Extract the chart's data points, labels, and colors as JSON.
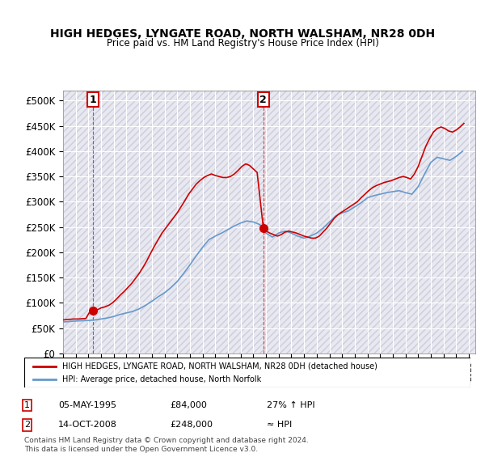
{
  "title": "HIGH HEDGES, LYNGATE ROAD, NORTH WALSHAM, NR28 0DH",
  "subtitle": "Price paid vs. HM Land Registry's House Price Index (HPI)",
  "legend_line1": "HIGH HEDGES, LYNGATE ROAD, NORTH WALSHAM, NR28 0DH (detached house)",
  "legend_line2": "HPI: Average price, detached house, North Norfolk",
  "sale1_label": "1",
  "sale1_date": "05-MAY-1995",
  "sale1_price": "£84,000",
  "sale1_hpi": "27% ↑ HPI",
  "sale1_year": 1995.35,
  "sale1_value": 84000,
  "sale2_label": "2",
  "sale2_date": "14-OCT-2008",
  "sale2_price": "£248,000",
  "sale2_hpi": "≈ HPI",
  "sale2_year": 2008.79,
  "sale2_value": 248000,
  "footer": "Contains HM Land Registry data © Crown copyright and database right 2024.\nThis data is licensed under the Open Government Licence v3.0.",
  "hpi_color": "#6699cc",
  "price_color": "#cc0000",
  "bg_hatch_color": "#e8e8f0",
  "ylim": [
    0,
    520000
  ],
  "yticks": [
    0,
    50000,
    100000,
    150000,
    200000,
    250000,
    300000,
    350000,
    400000,
    450000,
    500000
  ],
  "xmin": 1993,
  "xmax": 2025.5,
  "hpi_data": {
    "years": [
      1993.0,
      1993.5,
      1994.0,
      1994.5,
      1995.0,
      1995.5,
      1996.0,
      1996.5,
      1997.0,
      1997.5,
      1998.0,
      1998.5,
      1999.0,
      1999.5,
      2000.0,
      2000.5,
      2001.0,
      2001.5,
      2002.0,
      2002.5,
      2003.0,
      2003.5,
      2004.0,
      2004.5,
      2005.0,
      2005.5,
      2006.0,
      2006.5,
      2007.0,
      2007.5,
      2008.0,
      2008.5,
      2009.0,
      2009.5,
      2010.0,
      2010.5,
      2011.0,
      2011.5,
      2012.0,
      2012.5,
      2013.0,
      2013.5,
      2014.0,
      2014.5,
      2015.0,
      2015.5,
      2016.0,
      2016.5,
      2017.0,
      2017.5,
      2018.0,
      2018.5,
      2019.0,
      2019.5,
      2020.0,
      2020.5,
      2021.0,
      2021.5,
      2022.0,
      2022.5,
      2023.0,
      2023.5,
      2024.0,
      2024.5
    ],
    "values": [
      62000,
      63000,
      64000,
      64500,
      65000,
      66000,
      68000,
      70000,
      73000,
      77000,
      80000,
      83000,
      88000,
      95000,
      103000,
      112000,
      120000,
      130000,
      142000,
      158000,
      175000,
      193000,
      210000,
      225000,
      232000,
      238000,
      245000,
      252000,
      258000,
      262000,
      260000,
      255000,
      238000,
      230000,
      238000,
      242000,
      238000,
      232000,
      228000,
      232000,
      238000,
      248000,
      260000,
      272000,
      278000,
      282000,
      290000,
      298000,
      308000,
      312000,
      315000,
      318000,
      320000,
      322000,
      318000,
      315000,
      330000,
      355000,
      378000,
      388000,
      385000,
      382000,
      390000,
      400000
    ]
  },
  "price_data": {
    "years": [
      1993.0,
      1993.3,
      1993.6,
      1993.9,
      1994.2,
      1994.5,
      1994.8,
      1995.1,
      1995.35,
      1995.7,
      1996.0,
      1996.3,
      1996.6,
      1996.9,
      1997.2,
      1997.5,
      1997.8,
      1998.1,
      1998.4,
      1998.7,
      1999.0,
      1999.3,
      1999.6,
      1999.9,
      2000.2,
      2000.5,
      2000.8,
      2001.1,
      2001.4,
      2001.7,
      2002.0,
      2002.3,
      2002.6,
      2002.9,
      2003.2,
      2003.5,
      2003.8,
      2004.1,
      2004.4,
      2004.7,
      2005.0,
      2005.3,
      2005.6,
      2005.9,
      2006.2,
      2006.5,
      2006.8,
      2007.1,
      2007.4,
      2007.7,
      2008.0,
      2008.3,
      2008.79,
      2009.0,
      2009.3,
      2009.6,
      2009.9,
      2010.2,
      2010.5,
      2010.8,
      2011.1,
      2011.4,
      2011.7,
      2012.0,
      2012.3,
      2012.6,
      2012.9,
      2013.2,
      2013.5,
      2013.8,
      2014.1,
      2014.4,
      2014.7,
      2015.0,
      2015.3,
      2015.6,
      2015.9,
      2016.2,
      2016.5,
      2016.8,
      2017.1,
      2017.4,
      2017.7,
      2018.0,
      2018.3,
      2018.6,
      2018.9,
      2019.2,
      2019.5,
      2019.8,
      2020.1,
      2020.4,
      2020.7,
      2021.0,
      2021.3,
      2021.6,
      2021.9,
      2022.2,
      2022.5,
      2022.8,
      2023.1,
      2023.4,
      2023.7,
      2024.0,
      2024.3,
      2024.6
    ],
    "values": [
      66000,
      67000,
      67500,
      68000,
      68000,
      68500,
      69000,
      82000,
      84000,
      86000,
      90000,
      92000,
      95000,
      100000,
      107000,
      115000,
      122000,
      130000,
      138000,
      148000,
      158000,
      170000,
      183000,
      198000,
      212000,
      225000,
      238000,
      248000,
      258000,
      268000,
      278000,
      290000,
      302000,
      315000,
      325000,
      335000,
      342000,
      348000,
      352000,
      355000,
      352000,
      350000,
      348000,
      348000,
      350000,
      355000,
      362000,
      370000,
      375000,
      372000,
      365000,
      358000,
      248000,
      242000,
      238000,
      235000,
      232000,
      235000,
      240000,
      242000,
      240000,
      238000,
      235000,
      232000,
      230000,
      228000,
      228000,
      232000,
      240000,
      248000,
      258000,
      268000,
      275000,
      280000,
      285000,
      290000,
      295000,
      300000,
      308000,
      315000,
      322000,
      328000,
      332000,
      335000,
      338000,
      340000,
      342000,
      345000,
      348000,
      350000,
      348000,
      345000,
      355000,
      370000,
      390000,
      410000,
      425000,
      438000,
      445000,
      448000,
      445000,
      440000,
      438000,
      442000,
      448000,
      455000
    ]
  }
}
